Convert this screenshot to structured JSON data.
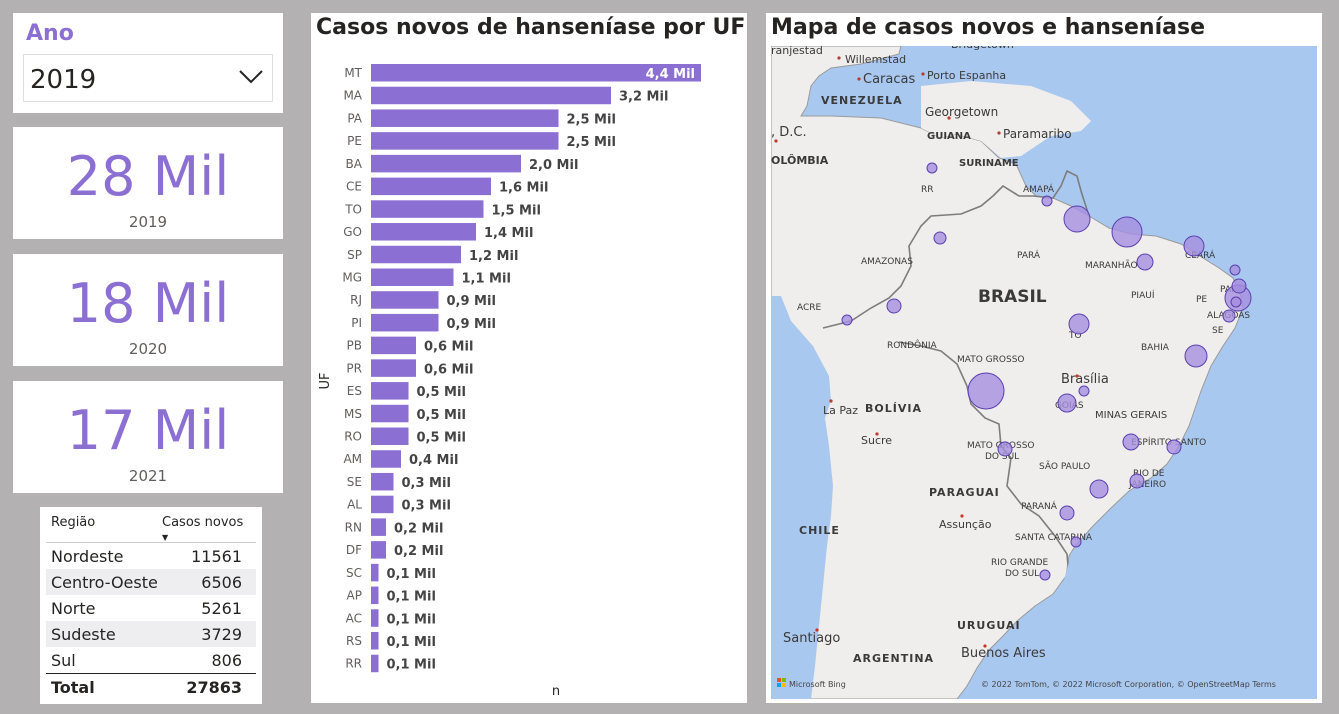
{
  "slicer": {
    "title": "Ano",
    "selected": "2019"
  },
  "kpis": [
    {
      "value": "28 Mil",
      "year": "2019"
    },
    {
      "value": "18 Mil",
      "year": "2020"
    },
    {
      "value": "17 Mil",
      "year": "2021"
    }
  ],
  "table": {
    "headers": [
      "Região",
      "Casos novos"
    ],
    "rows": [
      {
        "regiao": "Nordeste",
        "casos": "11561"
      },
      {
        "regiao": "Centro-Oeste",
        "casos": "6506"
      },
      {
        "regiao": "Norte",
        "casos": "5261"
      },
      {
        "regiao": "Sudeste",
        "casos": "3729"
      },
      {
        "regiao": "Sul",
        "casos": "806"
      }
    ],
    "total_label": "Total",
    "total_value": "27863"
  },
  "colors": {
    "accent": "#8c6fd2",
    "bar": "#8c6fd2",
    "map_water": "#a9c8ef",
    "map_land": "#efeeec",
    "bubble": "#a58ee0"
  },
  "chart_data": {
    "type": "bar",
    "orientation": "horizontal",
    "title": "Casos novos de hanseníase por UF",
    "xlabel": "n",
    "ylabel": "UF",
    "categories": [
      "MT",
      "MA",
      "PA",
      "PE",
      "BA",
      "CE",
      "TO",
      "GO",
      "SP",
      "MG",
      "RJ",
      "PI",
      "PB",
      "PR",
      "ES",
      "MS",
      "RO",
      "AM",
      "SE",
      "AL",
      "RN",
      "DF",
      "SC",
      "AP",
      "AC",
      "RS",
      "RR"
    ],
    "values": [
      4.4,
      3.2,
      2.5,
      2.5,
      2.0,
      1.6,
      1.5,
      1.4,
      1.2,
      1.1,
      0.9,
      0.9,
      0.6,
      0.6,
      0.5,
      0.5,
      0.5,
      0.4,
      0.3,
      0.3,
      0.2,
      0.2,
      0.1,
      0.1,
      0.1,
      0.1,
      0.1
    ],
    "value_labels": [
      "4,4 Mil",
      "3,2 Mil",
      "2,5 Mil",
      "2,5 Mil",
      "2,0 Mil",
      "1,6 Mil",
      "1,5 Mil",
      "1,4 Mil",
      "1,2 Mil",
      "1,1 Mil",
      "0,9 Mil",
      "0,9 Mil",
      "0,6 Mil",
      "0,6 Mil",
      "0,5 Mil",
      "0,5 Mil",
      "0,5 Mil",
      "0,4 Mil",
      "0,3 Mil",
      "0,3 Mil",
      "0,2 Mil",
      "0,2 Mil",
      "0,1 Mil",
      "0,1 Mil",
      "0,1 Mil",
      "0,1 Mil",
      "0,1 Mil"
    ],
    "unit": "Mil"
  },
  "map": {
    "title": "Mapa de casos novos e hanseníase",
    "labels": [
      "Willemstad",
      "Caracas",
      "Porto Espanha",
      "VENEZUELA",
      "Georgetown",
      "GUIANA",
      "Paramaribo",
      "SURINAME",
      "COLÔMBIA",
      "RR",
      "AMAPÁ",
      "AMAZONAS",
      "PARÁ",
      "MARANHÃO",
      "CEARÁ",
      "PIAUÍ",
      "PE",
      "PARAÍ",
      "ALAGOAS",
      "SE",
      "BAHIA",
      "ACRE",
      "RONDÔNIA",
      "MATO GROSSO",
      "TO",
      "BRASIL",
      "Brasília",
      "GOIÁS",
      "MINAS GERAIS",
      "ESPÍRITO SANTO",
      "RIO DE JANEIRO",
      "SÃO PAULO",
      "MATO GROSSO DO SUL",
      "PARANÁ",
      "SANTA CATARINA",
      "RIO GRANDE DO SUL",
      "BOLÍVIA",
      "La Paz",
      "Sucre",
      "PARAGUAI",
      "Assunção",
      "CHILE",
      "Santiago",
      "URUGUAI",
      "Buenos Aires",
      "ARGENTINA",
      "Bridgetown",
      "ranjestad",
      ", D.C."
    ],
    "attribution": "© 2022 TomTom, © 2022 Microsoft Corporation, © OpenStreetMap  Terms",
    "logo": "Microsoft Bing",
    "bubbles_cases": [
      4400,
      3200,
      2500,
      2500,
      2000,
      1600,
      1500,
      1400,
      1200,
      1100,
      900,
      900,
      600,
      600,
      500,
      500,
      500,
      400,
      300,
      300,
      200,
      200,
      100,
      100,
      100,
      100,
      100
    ]
  }
}
